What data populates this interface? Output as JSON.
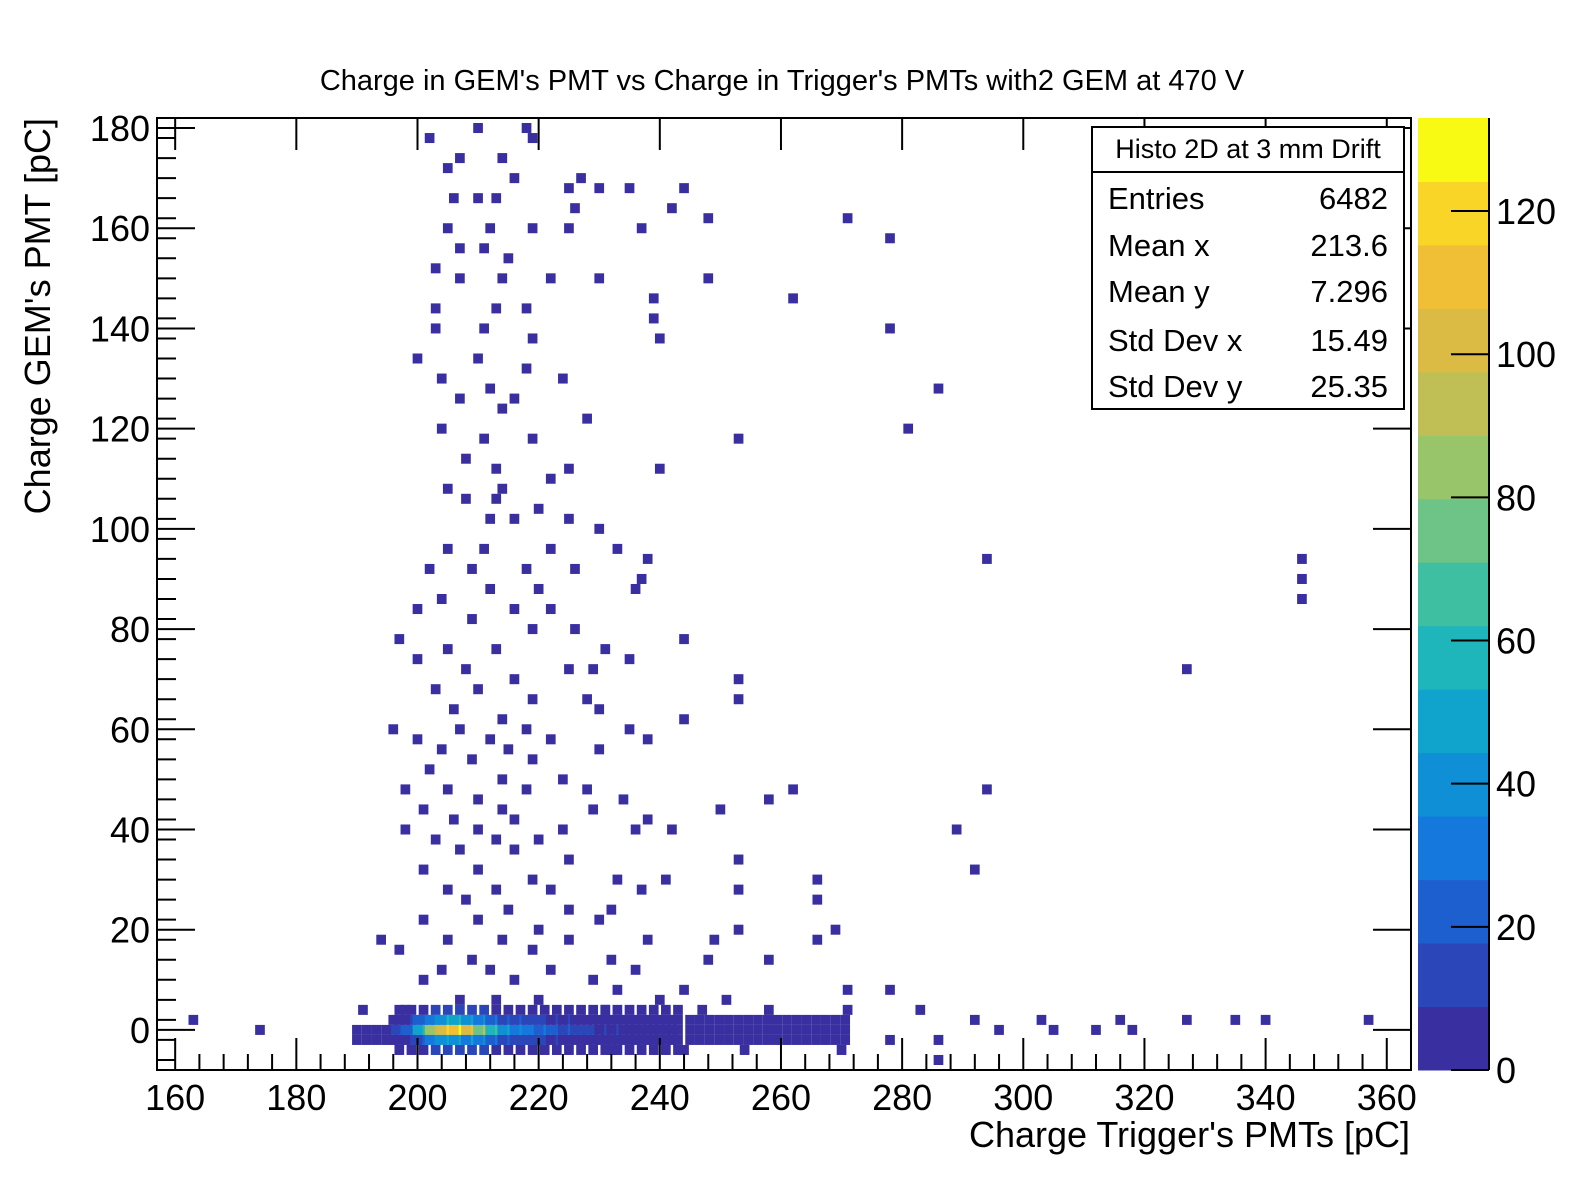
{
  "chart_data": {
    "type": "heatmap",
    "title": "Charge in GEM's PMT vs Charge in Trigger's PMTs with2 GEM at 470 V",
    "xlabel": "Charge Trigger's PMTs [pC]",
    "ylabel": "Charge GEM's PMT [pC]",
    "xlim": [
      157,
      364
    ],
    "ylim": [
      -8,
      182
    ],
    "xticks": [
      160,
      180,
      200,
      220,
      240,
      260,
      280,
      300,
      320,
      340,
      360
    ],
    "yticks": [
      0,
      20,
      40,
      60,
      80,
      100,
      120,
      140,
      160,
      180
    ],
    "colorbar": {
      "min": 0,
      "max": 133,
      "ticks": [
        0,
        20,
        40,
        60,
        80,
        100,
        120
      ],
      "palette": [
        "#3a2fa0",
        "#2a46b8",
        "#1e5fd0",
        "#1478dc",
        "#0f8fd6",
        "#10a4cc",
        "#1eb5bb",
        "#3fbfa2",
        "#6dc486",
        "#98c46a",
        "#bfbf55",
        "#dcbb44",
        "#f0bf35",
        "#f9d527",
        "#f8fa14"
      ]
    },
    "stats_box": {
      "title": "Histo 2D at 3 mm Drift",
      "rows": [
        {
          "label": "Entries",
          "value": "6482"
        },
        {
          "label": "Mean x",
          "value": "213.6"
        },
        {
          "label": "Mean y",
          "value": "7.296"
        },
        {
          "label": "Std Dev x",
          "value": "15.49"
        },
        {
          "label": "Std Dev y",
          "value": "25.35"
        }
      ]
    },
    "bin_width_x": 1.6,
    "bin_width_y": 2.0,
    "core_bins_y0": [
      {
        "x": 197,
        "v": 12
      },
      {
        "x": 199,
        "v": 25
      },
      {
        "x": 201,
        "v": 55
      },
      {
        "x": 203,
        "v": 95
      },
      {
        "x": 205,
        "v": 120
      },
      {
        "x": 207,
        "v": 132
      },
      {
        "x": 209,
        "v": 115
      },
      {
        "x": 211,
        "v": 90
      },
      {
        "x": 213,
        "v": 70
      },
      {
        "x": 215,
        "v": 50
      },
      {
        "x": 217,
        "v": 40
      },
      {
        "x": 219,
        "v": 34
      },
      {
        "x": 221,
        "v": 30
      },
      {
        "x": 223,
        "v": 24
      },
      {
        "x": 225,
        "v": 20
      },
      {
        "x": 227,
        "v": 16
      },
      {
        "x": 229,
        "v": 12
      },
      {
        "x": 231,
        "v": 10
      },
      {
        "x": 233,
        "v": 9
      },
      {
        "x": 235,
        "v": 8
      },
      {
        "x": 237,
        "v": 7
      },
      {
        "x": 239,
        "v": 7
      },
      {
        "x": 241,
        "v": 6
      },
      {
        "x": 243,
        "v": 5
      }
    ],
    "sparse_bins": [
      [
        202,
        178
      ],
      [
        210,
        180
      ],
      [
        218,
        180
      ],
      [
        219,
        178
      ],
      [
        205,
        172
      ],
      [
        207,
        174
      ],
      [
        214,
        174
      ],
      [
        216,
        170
      ],
      [
        225,
        168
      ],
      [
        227,
        170
      ],
      [
        230,
        168
      ],
      [
        235,
        168
      ],
      [
        244,
        168
      ],
      [
        206,
        166
      ],
      [
        210,
        166
      ],
      [
        213,
        166
      ],
      [
        226,
        164
      ],
      [
        242,
        164
      ],
      [
        248,
        162
      ],
      [
        271,
        162
      ],
      [
        205,
        160
      ],
      [
        212,
        160
      ],
      [
        219,
        160
      ],
      [
        225,
        160
      ],
      [
        237,
        160
      ],
      [
        278,
        158
      ],
      [
        207,
        156
      ],
      [
        211,
        156
      ],
      [
        215,
        154
      ],
      [
        203,
        152
      ],
      [
        207,
        150
      ],
      [
        214,
        150
      ],
      [
        222,
        150
      ],
      [
        230,
        150
      ],
      [
        248,
        150
      ],
      [
        239,
        146
      ],
      [
        262,
        146
      ],
      [
        203,
        144
      ],
      [
        213,
        144
      ],
      [
        218,
        144
      ],
      [
        239,
        142
      ],
      [
        203,
        140
      ],
      [
        211,
        140
      ],
      [
        219,
        138
      ],
      [
        240,
        138
      ],
      [
        278,
        140
      ],
      [
        200,
        134
      ],
      [
        210,
        134
      ],
      [
        218,
        132
      ],
      [
        224,
        130
      ],
      [
        204,
        130
      ],
      [
        212,
        128
      ],
      [
        216,
        126
      ],
      [
        286,
        128
      ],
      [
        207,
        126
      ],
      [
        214,
        124
      ],
      [
        228,
        122
      ],
      [
        281,
        120
      ],
      [
        204,
        120
      ],
      [
        211,
        118
      ],
      [
        219,
        118
      ],
      [
        253,
        118
      ],
      [
        208,
        114
      ],
      [
        213,
        112
      ],
      [
        225,
        112
      ],
      [
        240,
        112
      ],
      [
        205,
        108
      ],
      [
        214,
        108
      ],
      [
        222,
        110
      ],
      [
        208,
        106
      ],
      [
        213,
        106
      ],
      [
        220,
        104
      ],
      [
        212,
        102
      ],
      [
        216,
        102
      ],
      [
        225,
        102
      ],
      [
        230,
        100
      ],
      [
        205,
        96
      ],
      [
        211,
        96
      ],
      [
        222,
        96
      ],
      [
        233,
        96
      ],
      [
        238,
        94
      ],
      [
        294,
        94
      ],
      [
        346,
        94
      ],
      [
        202,
        92
      ],
      [
        209,
        92
      ],
      [
        218,
        92
      ],
      [
        226,
        92
      ],
      [
        237,
        90
      ],
      [
        346,
        90
      ],
      [
        212,
        88
      ],
      [
        220,
        88
      ],
      [
        236,
        88
      ],
      [
        346,
        86
      ],
      [
        204,
        86
      ],
      [
        216,
        84
      ],
      [
        222,
        84
      ],
      [
        200,
        84
      ],
      [
        209,
        82
      ],
      [
        219,
        80
      ],
      [
        226,
        80
      ],
      [
        244,
        78
      ],
      [
        197,
        78
      ],
      [
        205,
        76
      ],
      [
        213,
        76
      ],
      [
        231,
        76
      ],
      [
        235,
        74
      ],
      [
        200,
        74
      ],
      [
        208,
        72
      ],
      [
        216,
        70
      ],
      [
        225,
        72
      ],
      [
        229,
        72
      ],
      [
        327,
        72
      ],
      [
        253,
        70
      ],
      [
        203,
        68
      ],
      [
        210,
        68
      ],
      [
        219,
        66
      ],
      [
        228,
        66
      ],
      [
        253,
        66
      ],
      [
        206,
        64
      ],
      [
        214,
        62
      ],
      [
        230,
        64
      ],
      [
        244,
        62
      ],
      [
        196,
        60
      ],
      [
        207,
        60
      ],
      [
        218,
        60
      ],
      [
        235,
        60
      ],
      [
        200,
        58
      ],
      [
        212,
        58
      ],
      [
        222,
        58
      ],
      [
        238,
        58
      ],
      [
        204,
        56
      ],
      [
        215,
        56
      ],
      [
        230,
        56
      ],
      [
        209,
        54
      ],
      [
        219,
        54
      ],
      [
        202,
        52
      ],
      [
        214,
        50
      ],
      [
        224,
        50
      ],
      [
        198,
        48
      ],
      [
        205,
        48
      ],
      [
        218,
        48
      ],
      [
        228,
        48
      ],
      [
        262,
        48
      ],
      [
        294,
        48
      ],
      [
        210,
        46
      ],
      [
        234,
        46
      ],
      [
        258,
        46
      ],
      [
        201,
        44
      ],
      [
        214,
        44
      ],
      [
        229,
        44
      ],
      [
        250,
        44
      ],
      [
        206,
        42
      ],
      [
        216,
        42
      ],
      [
        238,
        42
      ],
      [
        289,
        40
      ],
      [
        198,
        40
      ],
      [
        210,
        40
      ],
      [
        224,
        40
      ],
      [
        203,
        38
      ],
      [
        213,
        38
      ],
      [
        220,
        38
      ],
      [
        236,
        40
      ],
      [
        242,
        40
      ],
      [
        207,
        36
      ],
      [
        216,
        36
      ],
      [
        225,
        34
      ],
      [
        253,
        34
      ],
      [
        292,
        32
      ],
      [
        201,
        32
      ],
      [
        210,
        32
      ],
      [
        219,
        30
      ],
      [
        233,
        30
      ],
      [
        241,
        30
      ],
      [
        266,
        30
      ],
      [
        205,
        28
      ],
      [
        213,
        28
      ],
      [
        222,
        28
      ],
      [
        237,
        28
      ],
      [
        253,
        28
      ],
      [
        266,
        26
      ],
      [
        208,
        26
      ],
      [
        215,
        24
      ],
      [
        225,
        24
      ],
      [
        232,
        24
      ],
      [
        201,
        22
      ],
      [
        210,
        22
      ],
      [
        220,
        20
      ],
      [
        230,
        22
      ],
      [
        253,
        20
      ],
      [
        269,
        20
      ],
      [
        194,
        18
      ],
      [
        205,
        18
      ],
      [
        214,
        18
      ],
      [
        225,
        18
      ],
      [
        238,
        18
      ],
      [
        249,
        18
      ],
      [
        266,
        18
      ],
      [
        197,
        16
      ],
      [
        209,
        14
      ],
      [
        219,
        16
      ],
      [
        232,
        14
      ],
      [
        248,
        14
      ],
      [
        258,
        14
      ],
      [
        204,
        12
      ],
      [
        212,
        12
      ],
      [
        222,
        12
      ],
      [
        236,
        12
      ],
      [
        201,
        10
      ],
      [
        216,
        10
      ],
      [
        229,
        10
      ],
      [
        233,
        8
      ],
      [
        244,
        8
      ],
      [
        271,
        8
      ],
      [
        278,
        8
      ],
      [
        207,
        6
      ],
      [
        213,
        6
      ],
      [
        220,
        6
      ],
      [
        240,
        6
      ],
      [
        251,
        6
      ],
      [
        283,
        4
      ],
      [
        191,
        4
      ],
      [
        198,
        4
      ],
      [
        231,
        4
      ],
      [
        247,
        4
      ],
      [
        258,
        4
      ],
      [
        271,
        4
      ],
      [
        292,
        2
      ],
      [
        303,
        2
      ],
      [
        163,
        2
      ],
      [
        174,
        0
      ],
      [
        316,
        2
      ],
      [
        327,
        2
      ],
      [
        335,
        2
      ],
      [
        340,
        2
      ],
      [
        357,
        2
      ],
      [
        318,
        0
      ],
      [
        296,
        0
      ],
      [
        305,
        0
      ],
      [
        312,
        0
      ],
      [
        286,
        -2
      ],
      [
        278,
        -2
      ],
      [
        270,
        -4
      ],
      [
        254,
        -4
      ],
      [
        244,
        -4
      ],
      [
        232,
        -4
      ],
      [
        286,
        -6
      ]
    ]
  }
}
